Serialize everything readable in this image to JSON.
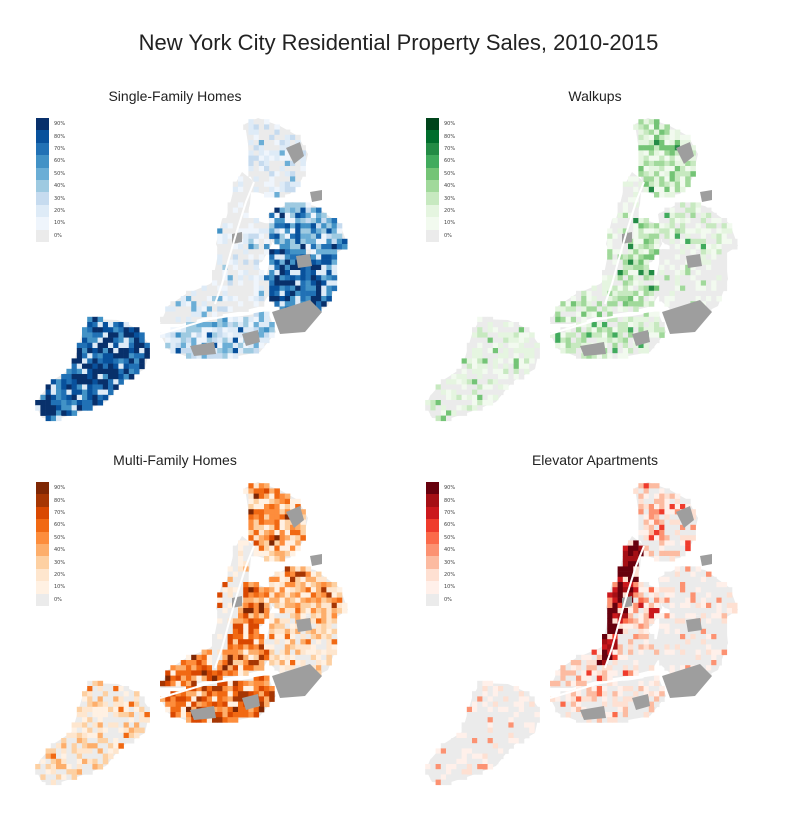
{
  "title": "New York City Residential Property Sales, 2010-2015",
  "colors": {
    "no_data": "#ebebeb",
    "park": "#9e9e9e"
  },
  "legend_labels": [
    "90%",
    "80%",
    "70%",
    "60%",
    "50%",
    "40%",
    "30%",
    "20%",
    "10%",
    "0%"
  ],
  "panels": [
    {
      "title": "Single-Family Homes",
      "ramp": [
        "#08306b",
        "#08519c",
        "#2171b5",
        "#4292c6",
        "#6baed6",
        "#9ecae1",
        "#c6dbef",
        "#deebf7",
        "#eff5fc",
        "#ebebeb"
      ],
      "levels": {
        "staten": 0.85,
        "queens_se": 0.8,
        "queens_ne": 0.6,
        "brooklyn_s": 0.4,
        "bronx": 0.15,
        "manhattan": 0.02,
        "brooklyn_n": 0.1,
        "queens_w": 0.2
      }
    },
    {
      "title": "Walkups",
      "ramp": [
        "#00441b",
        "#006d2c",
        "#238b45",
        "#41ab5d",
        "#74c476",
        "#a1d99b",
        "#c7e9c0",
        "#e5f5e0",
        "#f2faef",
        "#ebebeb"
      ],
      "levels": {
        "staten": 0.12,
        "queens_se": 0.05,
        "queens_ne": 0.2,
        "brooklyn_s": 0.25,
        "bronx": 0.35,
        "manhattan": 0.05,
        "brooklyn_n": 0.3,
        "queens_w": 0.35
      }
    },
    {
      "title": "Multi-Family Homes",
      "ramp": [
        "#7f2704",
        "#a63603",
        "#d94801",
        "#f16913",
        "#fd8d3c",
        "#fdae6b",
        "#fdd0a2",
        "#fee6ce",
        "#fff1e3",
        "#ebebeb"
      ],
      "levels": {
        "staten": 0.22,
        "queens_se": 0.25,
        "queens_ne": 0.4,
        "brooklyn_s": 0.65,
        "bronx": 0.5,
        "manhattan": 0.02,
        "brooklyn_n": 0.6,
        "queens_w": 0.55
      }
    },
    {
      "title": "Elevator Apartments",
      "ramp": [
        "#67000d",
        "#a50f15",
        "#cb181d",
        "#ef3b2c",
        "#fb6a4a",
        "#fc9272",
        "#fcbba1",
        "#fee0d2",
        "#fff0ea",
        "#ebebeb"
      ],
      "levels": {
        "staten": 0.02,
        "queens_se": 0.03,
        "queens_ne": 0.08,
        "brooklyn_s": 0.15,
        "bronx": 0.2,
        "manhattan": 0.9,
        "brooklyn_n": 0.2,
        "queens_w": 0.3
      }
    }
  ]
}
